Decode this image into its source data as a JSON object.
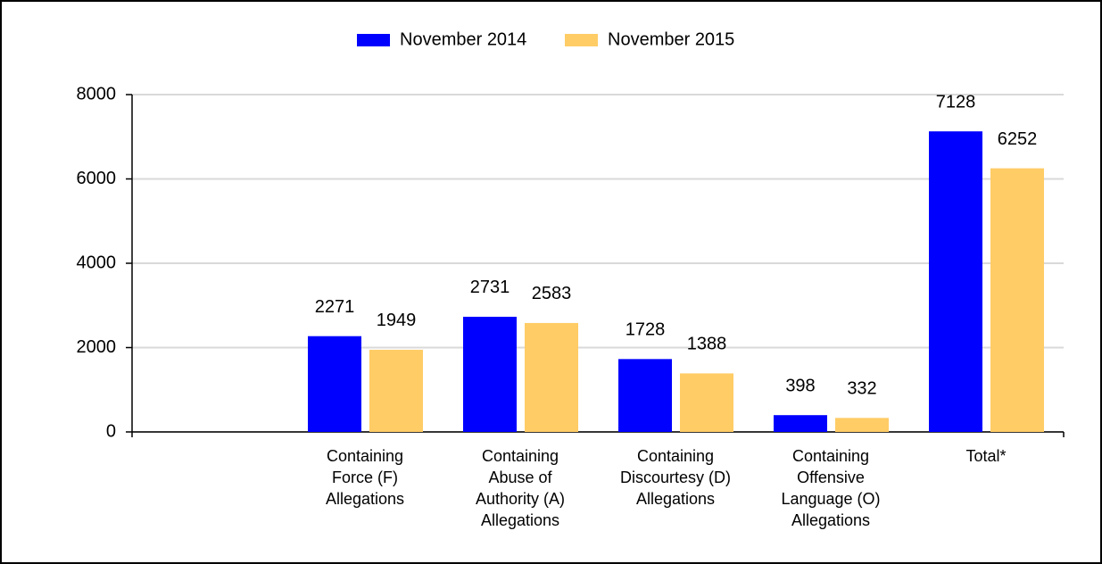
{
  "chart_data": {
    "type": "bar",
    "categories": [
      null,
      "Containing\nForce (F)\nAllegations",
      "Containing\nAbuse of\nAuthority (A)\nAllegations",
      "Containing\nDiscourtesy (D)\nAllegations",
      "Containing\nOffensive\nLanguage (O)\nAllegations",
      "Total*"
    ],
    "series": [
      {
        "name": "November 2014",
        "color": "#0000ff",
        "values": [
          null,
          2271,
          2731,
          1728,
          398,
          7128
        ]
      },
      {
        "name": "November 2015",
        "color": "#ffcc66",
        "values": [
          null,
          1949,
          2583,
          1388,
          332,
          6252
        ]
      }
    ],
    "ylim": [
      0,
      8000
    ],
    "yticks": [
      0,
      2000,
      4000,
      6000,
      8000
    ],
    "grid": true,
    "legend": "top"
  }
}
